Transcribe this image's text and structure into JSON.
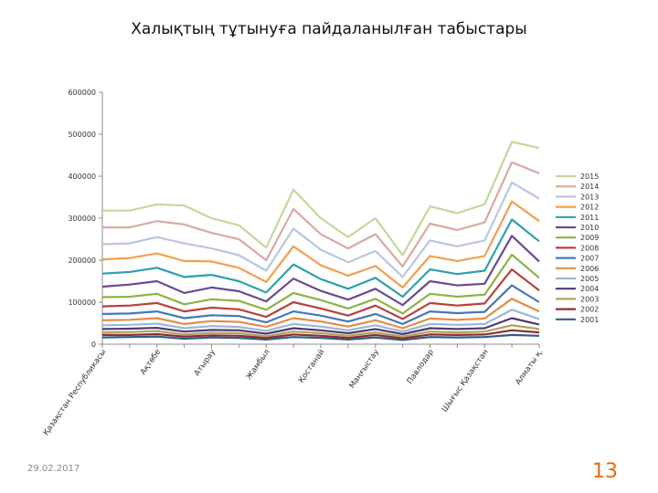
{
  "slide": {
    "title": "Халықтың тұтынуға пайдаланылған табыстары",
    "date": "29.02.2017",
    "page_number": "13"
  },
  "chart_data": {
    "type": "line",
    "title": "",
    "xlabel": "",
    "ylabel": "",
    "ylim": [
      0,
      600000
    ],
    "yticks": [
      0,
      100000,
      200000,
      300000,
      400000,
      500000,
      600000
    ],
    "grid": false,
    "legend_position": "right",
    "categories": [
      "Қазақстан Республикасы",
      "",
      "Ақтөбе",
      "",
      "Атырау",
      "",
      "Жамбыл",
      "",
      "Қостанай",
      "",
      "Маңғыстау",
      "",
      "Павлодар",
      "",
      "Шығыс Қазақстан",
      "",
      "Алматы қ."
    ],
    "series": [
      {
        "name": "2015",
        "color": "#c4d79b",
        "values": [
          318000,
          318000,
          333000,
          330000,
          300000,
          283000,
          230000,
          368000,
          300000,
          255000,
          300000,
          212000,
          328000,
          312000,
          333000,
          482000,
          467000
        ]
      },
      {
        "name": "2014",
        "color": "#d9a9a5",
        "values": [
          278000,
          278000,
          293000,
          285000,
          265000,
          250000,
          200000,
          322000,
          262000,
          228000,
          262000,
          185000,
          287000,
          272000,
          290000,
          433000,
          407000
        ]
      },
      {
        "name": "2013",
        "color": "#b8c7de",
        "values": [
          238000,
          240000,
          255000,
          240000,
          228000,
          212000,
          175000,
          275000,
          225000,
          195000,
          222000,
          160000,
          247000,
          233000,
          247000,
          385000,
          347000
        ]
      },
      {
        "name": "2012",
        "color": "#f29f4e",
        "values": [
          202000,
          205000,
          216000,
          198000,
          197000,
          182000,
          148000,
          233000,
          188000,
          163000,
          186000,
          135000,
          210000,
          198000,
          210000,
          340000,
          293000
        ]
      },
      {
        "name": "2011",
        "color": "#2ea0ad",
        "values": [
          168000,
          172000,
          182000,
          160000,
          165000,
          150000,
          123000,
          190000,
          155000,
          132000,
          158000,
          113000,
          178000,
          167000,
          175000,
          297000,
          245000
        ]
      },
      {
        "name": "2010",
        "color": "#6b4a8f",
        "values": [
          137000,
          142000,
          150000,
          122000,
          135000,
          126000,
          102000,
          156000,
          127000,
          106000,
          132000,
          93000,
          150000,
          140000,
          144000,
          258000,
          197000
        ]
      },
      {
        "name": "2009",
        "color": "#8db344",
        "values": [
          112000,
          113000,
          120000,
          95000,
          107000,
          103000,
          82000,
          122000,
          105000,
          85000,
          108000,
          73000,
          120000,
          113000,
          118000,
          213000,
          158000
        ]
      },
      {
        "name": "2008",
        "color": "#b8413d",
        "values": [
          90000,
          92000,
          98000,
          78000,
          87000,
          83000,
          65000,
          100000,
          85000,
          68000,
          92000,
          60000,
          98000,
          92000,
          97000,
          178000,
          128000
        ]
      },
      {
        "name": "2007",
        "color": "#4577b7",
        "values": [
          72000,
          73000,
          78000,
          62000,
          69000,
          67000,
          52000,
          78000,
          68000,
          54000,
          72000,
          48000,
          78000,
          74000,
          77000,
          140000,
          100000
        ]
      },
      {
        "name": "2006",
        "color": "#e48c45",
        "values": [
          57000,
          58000,
          62000,
          48000,
          55000,
          53000,
          41000,
          62000,
          54000,
          42000,
          57000,
          38000,
          61000,
          58000,
          61000,
          108000,
          78000
        ]
      },
      {
        "name": "2005",
        "color": "#9ab5dc",
        "values": [
          45000,
          46000,
          49000,
          38000,
          43000,
          41000,
          32000,
          48000,
          42000,
          33000,
          45000,
          30000,
          48000,
          46000,
          48000,
          82000,
          60000
        ]
      },
      {
        "name": "2004",
        "color": "#4f3a73",
        "values": [
          36000,
          37000,
          39000,
          30000,
          34000,
          33000,
          25000,
          38000,
          33000,
          26000,
          36000,
          24000,
          38000,
          36000,
          38000,
          62000,
          47000
        ]
      },
      {
        "name": "2003",
        "color": "#b1a05a",
        "values": [
          28000,
          29000,
          31000,
          23000,
          27000,
          26000,
          19000,
          30000,
          26000,
          20000,
          28000,
          18000,
          30000,
          28000,
          30000,
          45000,
          36000
        ]
      },
      {
        "name": "2002",
        "color": "#8c2f2f",
        "values": [
          22000,
          22000,
          24000,
          18000,
          21000,
          20000,
          15000,
          23000,
          20000,
          15000,
          22000,
          14000,
          23000,
          22000,
          23000,
          33000,
          28000
        ]
      },
      {
        "name": "2001",
        "color": "#2f5d8c",
        "values": [
          16000,
          17000,
          18000,
          13000,
          16000,
          15000,
          11000,
          17000,
          15000,
          11000,
          16000,
          10000,
          17000,
          16000,
          17000,
          22000,
          20000
        ]
      }
    ]
  }
}
